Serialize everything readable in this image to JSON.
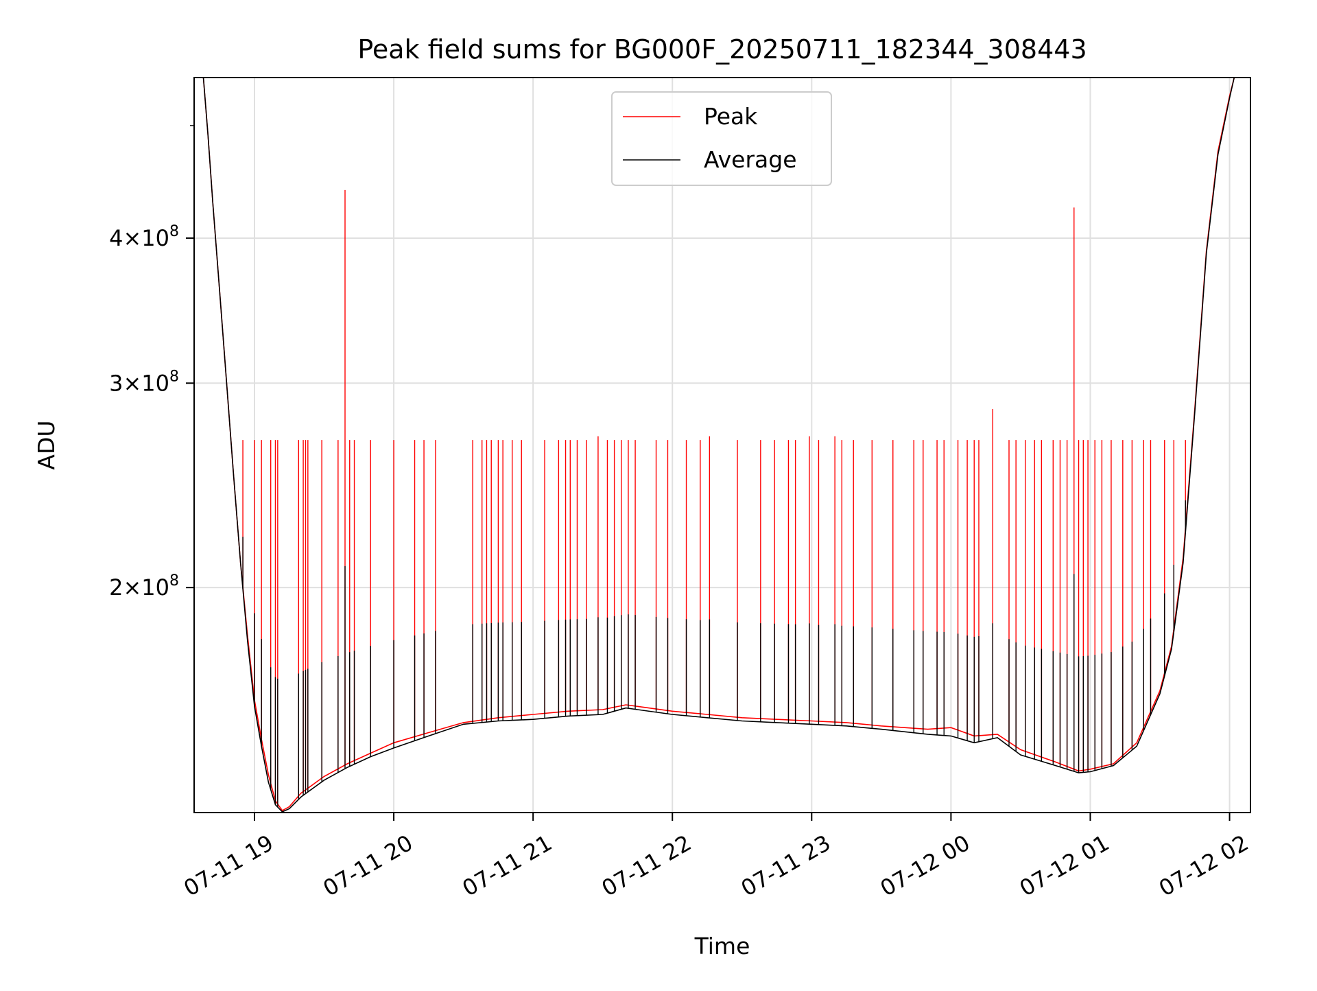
{
  "chart_data": {
    "type": "line",
    "title": "Peak field sums for BG000F_20250711_182344_308443",
    "xlabel": "Time",
    "ylabel": "ADU",
    "x_scale": "time",
    "y_scale": "log",
    "xlim": [
      "2025-07-11 18:34",
      "2025-07-12 02:09"
    ],
    "ylim": [
      128000000,
      550000000
    ],
    "x_ticks": [
      {
        "value": "2025-07-11 19:00",
        "label": "07-11 19"
      },
      {
        "value": "2025-07-11 20:00",
        "label": "07-11 20"
      },
      {
        "value": "2025-07-11 21:00",
        "label": "07-11 21"
      },
      {
        "value": "2025-07-11 22:00",
        "label": "07-11 22"
      },
      {
        "value": "2025-07-11 23:00",
        "label": "07-11 23"
      },
      {
        "value": "2025-07-12 00:00",
        "label": "07-12 00"
      },
      {
        "value": "2025-07-12 01:00",
        "label": "07-12 01"
      },
      {
        "value": "2025-07-12 02:00",
        "label": "07-12 02"
      }
    ],
    "y_ticks": [
      {
        "value": 200000000,
        "base": "2",
        "exp": "8"
      },
      {
        "value": 300000000,
        "base": "3",
        "exp": "8"
      },
      {
        "value": 400000000,
        "base": "4",
        "exp": "8"
      }
    ],
    "y_minor_ticks": [
      500000000
    ],
    "grid": true,
    "legend": "upper center",
    "series": [
      {
        "name": "Peak",
        "color": "#ff0000",
        "points": [
          [
            "2025-07-11 18:38",
            550000000
          ],
          [
            "2025-07-11 18:40",
            490000000
          ],
          [
            "2025-07-11 18:42",
            430000000
          ],
          [
            "2025-07-11 18:45",
            360000000
          ],
          [
            "2025-07-11 18:48",
            300000000
          ],
          [
            "2025-07-11 18:51",
            250000000
          ],
          [
            "2025-07-11 18:54",
            210000000
          ],
          [
            "2025-07-11 18:57",
            182000000
          ],
          [
            "2025-07-11 19:00",
            160000000
          ],
          [
            "2025-07-11 19:03",
            148000000
          ],
          [
            "2025-07-11 19:06",
            138000000
          ],
          [
            "2025-07-11 19:09",
            131000000
          ],
          [
            "2025-07-11 19:12",
            128500000
          ],
          [
            "2025-07-11 19:15",
            129500000
          ],
          [
            "2025-07-11 19:20",
            133000000
          ],
          [
            "2025-07-11 19:30",
            137500000
          ],
          [
            "2025-07-11 19:40",
            141000000
          ],
          [
            "2025-07-11 19:50",
            144000000
          ],
          [
            "2025-07-11 20:00",
            147000000
          ],
          [
            "2025-07-11 20:15",
            150000000
          ],
          [
            "2025-07-11 20:30",
            153000000
          ],
          [
            "2025-07-11 20:45",
            154500000
          ],
          [
            "2025-07-11 21:00",
            155500000
          ],
          [
            "2025-07-11 21:15",
            156500000
          ],
          [
            "2025-07-11 21:30",
            157000000
          ],
          [
            "2025-07-11 21:40",
            158500000
          ],
          [
            "2025-07-11 21:45",
            158000000
          ],
          [
            "2025-07-11 22:00",
            156500000
          ],
          [
            "2025-07-11 22:15",
            155500000
          ],
          [
            "2025-07-11 22:30",
            154500000
          ],
          [
            "2025-07-11 22:45",
            154000000
          ],
          [
            "2025-07-11 23:00",
            153500000
          ],
          [
            "2025-07-11 23:15",
            153000000
          ],
          [
            "2025-07-11 23:30",
            152000000
          ],
          [
            "2025-07-11 23:50",
            151000000
          ],
          [
            "2025-07-12 00:00",
            151500000
          ],
          [
            "2025-07-12 00:10",
            149000000
          ],
          [
            "2025-07-12 00:20",
            149500000
          ],
          [
            "2025-07-12 00:30",
            145000000
          ],
          [
            "2025-07-12 00:45",
            141500000
          ],
          [
            "2025-07-12 00:55",
            139000000
          ],
          [
            "2025-07-12 01:00",
            139500000
          ],
          [
            "2025-07-12 01:10",
            141000000
          ],
          [
            "2025-07-12 01:20",
            147000000
          ],
          [
            "2025-07-12 01:30",
            163000000
          ],
          [
            "2025-07-12 01:35",
            178000000
          ],
          [
            "2025-07-12 01:40",
            212000000
          ],
          [
            "2025-07-12 01:45",
            285000000
          ],
          [
            "2025-07-12 01:50",
            390000000
          ],
          [
            "2025-07-12 01:55",
            475000000
          ],
          [
            "2025-07-12 02:00",
            530000000
          ],
          [
            "2025-07-12 02:02",
            550000000
          ]
        ],
        "spikes": [
          [
            "2025-07-11 18:55",
            268000000
          ],
          [
            "2025-07-11 19:00",
            268000000
          ],
          [
            "2025-07-11 19:03",
            268000000
          ],
          [
            "2025-07-11 19:07",
            268000000
          ],
          [
            "2025-07-11 19:09",
            268000000
          ],
          [
            "2025-07-11 19:10",
            268000000
          ],
          [
            "2025-07-11 19:19",
            268000000
          ],
          [
            "2025-07-11 19:21",
            268000000
          ],
          [
            "2025-07-11 19:22",
            268000000
          ],
          [
            "2025-07-11 19:23",
            268000000
          ],
          [
            "2025-07-11 19:29",
            268000000
          ],
          [
            "2025-07-11 19:36",
            268000000
          ],
          [
            "2025-07-11 19:39",
            440000000
          ],
          [
            "2025-07-11 19:41",
            268000000
          ],
          [
            "2025-07-11 19:43",
            268000000
          ],
          [
            "2025-07-11 19:50",
            268000000
          ],
          [
            "2025-07-11 20:00",
            268000000
          ],
          [
            "2025-07-11 20:09",
            268000000
          ],
          [
            "2025-07-11 20:13",
            268000000
          ],
          [
            "2025-07-11 20:18",
            268000000
          ],
          [
            "2025-07-11 20:34",
            268000000
          ],
          [
            "2025-07-11 20:38",
            268000000
          ],
          [
            "2025-07-11 20:40",
            268000000
          ],
          [
            "2025-07-11 20:42",
            268000000
          ],
          [
            "2025-07-11 20:45",
            268000000
          ],
          [
            "2025-07-11 20:47",
            268000000
          ],
          [
            "2025-07-11 20:51",
            268000000
          ],
          [
            "2025-07-11 20:55",
            268000000
          ],
          [
            "2025-07-11 21:05",
            268000000
          ],
          [
            "2025-07-11 21:11",
            268000000
          ],
          [
            "2025-07-11 21:14",
            268000000
          ],
          [
            "2025-07-11 21:16",
            268000000
          ],
          [
            "2025-07-11 21:19",
            268000000
          ],
          [
            "2025-07-11 21:23",
            268000000
          ],
          [
            "2025-07-11 21:28",
            270000000
          ],
          [
            "2025-07-11 21:32",
            268000000
          ],
          [
            "2025-07-11 21:35",
            268000000
          ],
          [
            "2025-07-11 21:38",
            268000000
          ],
          [
            "2025-07-11 21:41",
            268000000
          ],
          [
            "2025-07-11 21:44",
            268000000
          ],
          [
            "2025-07-11 21:53",
            268000000
          ],
          [
            "2025-07-11 21:58",
            268000000
          ],
          [
            "2025-07-11 22:06",
            268000000
          ],
          [
            "2025-07-11 22:12",
            268000000
          ],
          [
            "2025-07-11 22:16",
            270000000
          ],
          [
            "2025-07-11 22:28",
            268000000
          ],
          [
            "2025-07-11 22:38",
            268000000
          ],
          [
            "2025-07-11 22:44",
            268000000
          ],
          [
            "2025-07-11 22:50",
            268000000
          ],
          [
            "2025-07-11 22:53",
            268000000
          ],
          [
            "2025-07-11 22:59",
            270000000
          ],
          [
            "2025-07-11 23:03",
            268000000
          ],
          [
            "2025-07-11 23:10",
            270000000
          ],
          [
            "2025-07-11 23:13",
            268000000
          ],
          [
            "2025-07-11 23:18",
            268000000
          ],
          [
            "2025-07-11 23:26",
            268000000
          ],
          [
            "2025-07-11 23:35",
            268000000
          ],
          [
            "2025-07-11 23:44",
            268000000
          ],
          [
            "2025-07-11 23:48",
            268000000
          ],
          [
            "2025-07-11 23:54",
            268000000
          ],
          [
            "2025-07-11 23:57",
            268000000
          ],
          [
            "2025-07-12 00:03",
            268000000
          ],
          [
            "2025-07-12 00:07",
            268000000
          ],
          [
            "2025-07-12 00:10",
            268000000
          ],
          [
            "2025-07-12 00:12",
            268000000
          ],
          [
            "2025-07-12 00:18",
            285000000
          ],
          [
            "2025-07-12 00:25",
            268000000
          ],
          [
            "2025-07-12 00:28",
            268000000
          ],
          [
            "2025-07-12 00:32",
            268000000
          ],
          [
            "2025-07-12 00:36",
            268000000
          ],
          [
            "2025-07-12 00:39",
            268000000
          ],
          [
            "2025-07-12 00:44",
            268000000
          ],
          [
            "2025-07-12 00:47",
            268000000
          ],
          [
            "2025-07-12 00:50",
            268000000
          ],
          [
            "2025-07-12 00:53",
            425000000
          ],
          [
            "2025-07-12 00:55",
            268000000
          ],
          [
            "2025-07-12 00:57",
            268000000
          ],
          [
            "2025-07-12 00:59",
            268000000
          ],
          [
            "2025-07-12 01:02",
            268000000
          ],
          [
            "2025-07-12 01:05",
            268000000
          ],
          [
            "2025-07-12 01:09",
            268000000
          ],
          [
            "2025-07-12 01:14",
            268000000
          ],
          [
            "2025-07-12 01:18",
            268000000
          ],
          [
            "2025-07-12 01:23",
            268000000
          ],
          [
            "2025-07-12 01:26",
            268000000
          ],
          [
            "2025-07-12 01:32",
            268000000
          ],
          [
            "2025-07-12 01:36",
            268000000
          ],
          [
            "2025-07-12 01:41",
            268000000
          ]
        ]
      },
      {
        "name": "Average",
        "color": "#000000",
        "points": [
          [
            "2025-07-11 18:38",
            550000000
          ],
          [
            "2025-07-11 18:40",
            490000000
          ],
          [
            "2025-07-11 18:42",
            430000000
          ],
          [
            "2025-07-11 18:45",
            360000000
          ],
          [
            "2025-07-11 18:48",
            300000000
          ],
          [
            "2025-07-11 18:51",
            250000000
          ],
          [
            "2025-07-11 18:54",
            210000000
          ],
          [
            "2025-07-11 18:57",
            180000000
          ],
          [
            "2025-07-11 19:00",
            158000000
          ],
          [
            "2025-07-11 19:03",
            146000000
          ],
          [
            "2025-07-11 19:06",
            136000000
          ],
          [
            "2025-07-11 19:09",
            130000000
          ],
          [
            "2025-07-11 19:12",
            128200000
          ],
          [
            "2025-07-11 19:15",
            129000000
          ],
          [
            "2025-07-11 19:20",
            132000000
          ],
          [
            "2025-07-11 19:30",
            136500000
          ],
          [
            "2025-07-11 19:40",
            140000000
          ],
          [
            "2025-07-11 19:50",
            143000000
          ],
          [
            "2025-07-11 20:00",
            145500000
          ],
          [
            "2025-07-11 20:15",
            149000000
          ],
          [
            "2025-07-11 20:30",
            152500000
          ],
          [
            "2025-07-11 20:45",
            153500000
          ],
          [
            "2025-07-11 21:00",
            154000000
          ],
          [
            "2025-07-11 21:15",
            155000000
          ],
          [
            "2025-07-11 21:30",
            155500000
          ],
          [
            "2025-07-11 21:40",
            157500000
          ],
          [
            "2025-07-11 21:45",
            157000000
          ],
          [
            "2025-07-11 22:00",
            155500000
          ],
          [
            "2025-07-11 22:15",
            154500000
          ],
          [
            "2025-07-11 22:30",
            153500000
          ],
          [
            "2025-07-11 22:45",
            153000000
          ],
          [
            "2025-07-11 23:00",
            152500000
          ],
          [
            "2025-07-11 23:15",
            152000000
          ],
          [
            "2025-07-11 23:30",
            151000000
          ],
          [
            "2025-07-11 23:50",
            149500000
          ],
          [
            "2025-07-12 00:00",
            149000000
          ],
          [
            "2025-07-12 00:10",
            147000000
          ],
          [
            "2025-07-12 00:20",
            148500000
          ],
          [
            "2025-07-12 00:30",
            143500000
          ],
          [
            "2025-07-12 00:45",
            140500000
          ],
          [
            "2025-07-12 00:55",
            138500000
          ],
          [
            "2025-07-12 01:00",
            138800000
          ],
          [
            "2025-07-12 01:10",
            140500000
          ],
          [
            "2025-07-12 01:20",
            146000000
          ],
          [
            "2025-07-12 01:30",
            162000000
          ],
          [
            "2025-07-12 01:35",
            177000000
          ],
          [
            "2025-07-12 01:40",
            210000000
          ],
          [
            "2025-07-12 01:45",
            283000000
          ],
          [
            "2025-07-12 01:50",
            388000000
          ],
          [
            "2025-07-12 01:55",
            472000000
          ],
          [
            "2025-07-12 02:00",
            528000000
          ],
          [
            "2025-07-12 02:02",
            550000000
          ]
        ]
      }
    ]
  }
}
